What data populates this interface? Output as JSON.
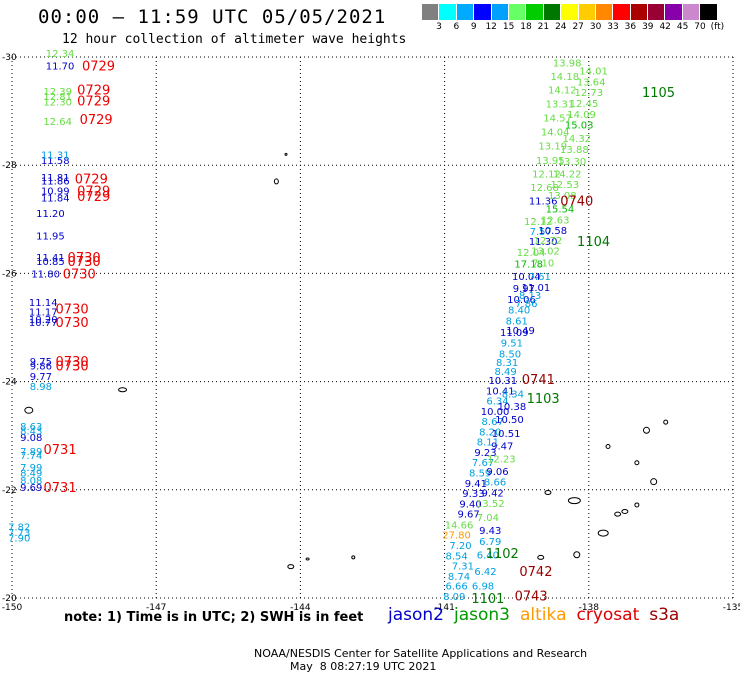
{
  "header": {
    "title": "00:00 – 11:59 UTC 05/05/2021",
    "subtitle": "12 hour collection of altimeter wave heights"
  },
  "legend": {
    "colors": [
      "#808080",
      "#00ffff",
      "#00aaff",
      "#0000ff",
      "#00a0ff",
      "#66ff66",
      "#00cc00",
      "#007700",
      "#ffff00",
      "#ffcc00",
      "#ff8800",
      "#ff0000",
      "#aa0000",
      "#990033",
      "#8800aa",
      "#cc88cc",
      "#000000"
    ],
    "ticks": [
      "3",
      "6",
      "9",
      "12",
      "15",
      "18",
      "21",
      "24",
      "27",
      "30",
      "33",
      "36",
      "39",
      "42",
      "45",
      "70",
      "(ft)"
    ]
  },
  "footer": {
    "note": "note: 1) Time is in UTC; 2) SWH is in feet",
    "credit": "NOAA/NESDIS Center for Satellite Applications and Research",
    "timestamp": "May  8 08:27:19 UTC 2021",
    "satellites": [
      {
        "name": "jason2",
        "color": "#0000cc"
      },
      {
        "name": "jason3",
        "color": "#009900"
      },
      {
        "name": "altika",
        "color": "#ff9900"
      },
      {
        "name": "cryosat",
        "color": "#dd0000"
      },
      {
        "name": "s3a",
        "color": "#990000"
      }
    ]
  },
  "chart_data": {
    "type": "scatter",
    "title": "00:00 – 11:59 UTC 05/05/2021",
    "subtitle": "12 hour collection of altimeter wave heights",
    "xlim": [
      -150,
      -135
    ],
    "ylim": [
      -30,
      -20
    ],
    "x_ticks": [
      "-150",
      "-147",
      "-144",
      "-141",
      "-138",
      "-135"
    ],
    "y_ticks": [
      "-20",
      "-22",
      "-24",
      "-26",
      "-28",
      "-30"
    ],
    "grid": true,
    "colors": {
      "blue": "#0000cc",
      "light": "#00a0e0",
      "green": "#00bb00",
      "lightgreen": "#66dd44",
      "orange": "#ff9900",
      "red": "#ee0000",
      "darkred": "#990000",
      "darkgreen": "#007700"
    },
    "points": [
      {
        "lon": -140.8,
        "lat": -20.04,
        "text": "8.09",
        "c": "light"
      },
      {
        "lon": -140.75,
        "lat": -20.23,
        "text": "6.66",
        "c": "light"
      },
      {
        "lon": -140.7,
        "lat": -20.41,
        "text": "8.74",
        "c": "light"
      },
      {
        "lon": -140.62,
        "lat": -20.6,
        "text": "7.31",
        "c": "light"
      },
      {
        "lon": -140.75,
        "lat": -20.79,
        "text": "8.54",
        "c": "light"
      },
      {
        "lon": -140.67,
        "lat": -20.98,
        "text": "7.20",
        "c": "light"
      },
      {
        "lon": -140.75,
        "lat": -21.17,
        "text": "27.80",
        "c": "orange"
      },
      {
        "lon": -140.7,
        "lat": -21.36,
        "text": "14.66",
        "c": "lightgreen"
      },
      {
        "lon": -140.5,
        "lat": -21.56,
        "text": "9.67",
        "c": "blue"
      },
      {
        "lon": -140.46,
        "lat": -21.75,
        "text": "9.40",
        "c": "blue"
      },
      {
        "lon": -140.4,
        "lat": -21.94,
        "text": "9.33",
        "c": "blue"
      },
      {
        "lon": -140.35,
        "lat": -22.13,
        "text": "9.41",
        "c": "blue"
      },
      {
        "lon": -140.26,
        "lat": -22.32,
        "text": "8.59",
        "c": "light"
      },
      {
        "lon": -140.2,
        "lat": -22.51,
        "text": "7.67",
        "c": "light"
      },
      {
        "lon": -140.15,
        "lat": -22.7,
        "text": "9.23",
        "c": "blue"
      },
      {
        "lon": -140.1,
        "lat": -22.89,
        "text": "8.11",
        "c": "light"
      },
      {
        "lon": -140.05,
        "lat": -23.08,
        "text": "8.20",
        "c": "light"
      },
      {
        "lon": -140.0,
        "lat": -23.27,
        "text": "8.67",
        "c": "light"
      },
      {
        "lon": -139.95,
        "lat": -23.46,
        "text": "10.00",
        "c": "blue"
      },
      {
        "lon": -139.9,
        "lat": -23.65,
        "text": "6.34",
        "c": "light"
      },
      {
        "lon": -139.84,
        "lat": -23.84,
        "text": "10.41",
        "c": "blue"
      },
      {
        "lon": -139.79,
        "lat": -24.03,
        "text": "10.31",
        "c": "blue"
      },
      {
        "lon": -139.73,
        "lat": -24.2,
        "text": "8.49",
        "c": "light"
      },
      {
        "lon": -139.7,
        "lat": -24.36,
        "text": "8.31",
        "c": "light"
      },
      {
        "lon": -139.64,
        "lat": -24.52,
        "text": "8.50",
        "c": "light"
      },
      {
        "lon": -139.6,
        "lat": -24.72,
        "text": "9.51",
        "c": "light"
      },
      {
        "lon": -139.55,
        "lat": -24.92,
        "text": "11.09",
        "c": "blue"
      },
      {
        "lon": -139.5,
        "lat": -25.13,
        "text": "8.61",
        "c": "light"
      },
      {
        "lon": -139.45,
        "lat": -25.33,
        "text": "8.40",
        "c": "light"
      },
      {
        "lon": -139.4,
        "lat": -25.53,
        "text": "10.06",
        "c": "blue"
      },
      {
        "lon": -139.35,
        "lat": -25.73,
        "text": "9.97",
        "c": "blue"
      },
      {
        "lon": -139.3,
        "lat": -25.95,
        "text": "10.04",
        "c": "blue"
      },
      {
        "lon": -139.25,
        "lat": -26.18,
        "text": "17.18",
        "c": "green"
      },
      {
        "lon": -139.2,
        "lat": -26.4,
        "text": "12.04",
        "c": "lightgreen"
      },
      {
        "lon": -138.95,
        "lat": -26.6,
        "text": "11.30",
        "c": "blue"
      },
      {
        "lon": -139.0,
        "lat": -26.78,
        "text": "7.57",
        "c": "light"
      },
      {
        "lon": -139.05,
        "lat": -26.97,
        "text": "12.12",
        "c": "lightgreen"
      },
      {
        "lon": -138.95,
        "lat": -27.35,
        "text": "11.36",
        "c": "blue"
      },
      {
        "lon": -138.92,
        "lat": -27.6,
        "text": "12.68",
        "c": "lightgreen"
      },
      {
        "lon": -138.88,
        "lat": -27.85,
        "text": "12.12",
        "c": "lightgreen"
      },
      {
        "lon": -138.8,
        "lat": -28.1,
        "text": "13.95",
        "c": "lightgreen"
      },
      {
        "lon": -138.75,
        "lat": -28.36,
        "text": "13.19",
        "c": "lightgreen"
      },
      {
        "lon": -138.7,
        "lat": -28.62,
        "text": "14.04",
        "c": "lightgreen"
      },
      {
        "lon": -138.65,
        "lat": -28.88,
        "text": "14.57",
        "c": "lightgreen"
      },
      {
        "lon": -138.6,
        "lat": -29.14,
        "text": "13.31",
        "c": "lightgreen"
      },
      {
        "lon": -138.55,
        "lat": -29.4,
        "text": "14.12",
        "c": "lightgreen"
      },
      {
        "lon": -138.5,
        "lat": -29.65,
        "text": "14.18",
        "c": "lightgreen"
      },
      {
        "lon": -138.45,
        "lat": -29.9,
        "text": "13.98",
        "c": "lightgreen"
      },
      {
        "lon": -140.2,
        "lat": -20.23,
        "text": "6.98",
        "c": "light"
      },
      {
        "lon": -140.15,
        "lat": -20.5,
        "text": "6.42",
        "c": "light"
      },
      {
        "lon": -140.1,
        "lat": -20.8,
        "text": "6.40",
        "c": "light"
      },
      {
        "lon": -140.05,
        "lat": -21.05,
        "text": "6.79",
        "c": "light"
      },
      {
        "lon": -140.05,
        "lat": -21.26,
        "text": "9.43",
        "c": "blue"
      },
      {
        "lon": -140.1,
        "lat": -21.5,
        "text": "7.04",
        "c": "lightgreen"
      },
      {
        "lon": -140.05,
        "lat": -21.76,
        "text": "13.52",
        "c": "lightgreen"
      },
      {
        "lon": -140.0,
        "lat": -21.95,
        "text": "9.42",
        "c": "blue"
      },
      {
        "lon": -139.95,
        "lat": -22.15,
        "text": "8.66",
        "c": "light"
      },
      {
        "lon": -139.9,
        "lat": -22.35,
        "text": "9.06",
        "c": "blue"
      },
      {
        "lon": -139.82,
        "lat": -22.58,
        "text": "12.23",
        "c": "lightgreen"
      },
      {
        "lon": -139.8,
        "lat": -22.82,
        "text": "9.47",
        "c": "blue"
      },
      {
        "lon": -139.72,
        "lat": -23.05,
        "text": "10.51",
        "c": "blue"
      },
      {
        "lon": -139.65,
        "lat": -23.31,
        "text": "10.50",
        "c": "blue"
      },
      {
        "lon": -139.6,
        "lat": -23.55,
        "text": "10.38",
        "c": "blue"
      },
      {
        "lon": -139.58,
        "lat": -23.78,
        "text": "8.34",
        "c": "light"
      },
      {
        "lon": -139.42,
        "lat": -24.95,
        "text": "10.49",
        "c": "blue"
      },
      {
        "lon": -139.3,
        "lat": -25.45,
        "text": "7.86",
        "c": "light"
      },
      {
        "lon": -139.22,
        "lat": -25.6,
        "text": "8.13",
        "c": "light"
      },
      {
        "lon": -139.1,
        "lat": -25.75,
        "text": "11.01",
        "c": "blue"
      },
      {
        "lon": -139.02,
        "lat": -25.95,
        "text": "7.61",
        "c": "light"
      },
      {
        "lon": -138.95,
        "lat": -26.2,
        "text": "7.10",
        "c": "lightgreen"
      },
      {
        "lon": -138.9,
        "lat": -26.42,
        "text": "13.02",
        "c": "lightgreen"
      },
      {
        "lon": -138.85,
        "lat": -26.62,
        "text": "12.72",
        "c": "lightgreen"
      },
      {
        "lon": -138.75,
        "lat": -26.8,
        "text": "10.58",
        "c": "blue"
      },
      {
        "lon": -138.7,
        "lat": -27.0,
        "text": "12.63",
        "c": "lightgreen"
      },
      {
        "lon": -138.6,
        "lat": -27.2,
        "text": "15.54",
        "c": "green"
      },
      {
        "lon": -138.55,
        "lat": -27.45,
        "text": "13.08",
        "c": "lightgreen"
      },
      {
        "lon": -138.5,
        "lat": -27.65,
        "text": "12.53",
        "c": "lightgreen"
      },
      {
        "lon": -138.45,
        "lat": -27.85,
        "text": "14.22",
        "c": "lightgreen"
      },
      {
        "lon": -138.35,
        "lat": -28.08,
        "text": "13.30",
        "c": "lightgreen"
      },
      {
        "lon": -138.3,
        "lat": -28.3,
        "text": "13.88",
        "c": "lightgreen"
      },
      {
        "lon": -138.25,
        "lat": -28.5,
        "text": "14.32",
        "c": "lightgreen"
      },
      {
        "lon": -138.2,
        "lat": -28.75,
        "text": "15.03",
        "c": "green"
      },
      {
        "lon": -138.15,
        "lat": -28.95,
        "text": "14.09",
        "c": "lightgreen"
      },
      {
        "lon": -138.1,
        "lat": -29.15,
        "text": "12.45",
        "c": "lightgreen"
      },
      {
        "lon": -138.0,
        "lat": -29.35,
        "text": "12.73",
        "c": "lightgreen"
      },
      {
        "lon": -137.95,
        "lat": -29.55,
        "text": "13.64",
        "c": "lightgreen"
      },
      {
        "lon": -137.9,
        "lat": -29.75,
        "text": "14.01",
        "c": "lightgreen"
      },
      {
        "lon": -149.85,
        "lat": -21.12,
        "text": "7.90",
        "c": "light"
      },
      {
        "lon": -149.85,
        "lat": -21.22,
        "text": "7.73",
        "c": "light"
      },
      {
        "lon": -149.85,
        "lat": -21.32,
        "text": "7.82",
        "c": "light"
      },
      {
        "lon": -149.6,
        "lat": -22.05,
        "text": "9.69",
        "c": "blue"
      },
      {
        "lon": -149.6,
        "lat": -22.18,
        "text": "8.08",
        "c": "light"
      },
      {
        "lon": -149.6,
        "lat": -22.32,
        "text": "8.49",
        "c": "light"
      },
      {
        "lon": -149.6,
        "lat": -22.42,
        "text": "7.99",
        "c": "light"
      },
      {
        "lon": -149.6,
        "lat": -22.64,
        "text": "7.74",
        "c": "light"
      },
      {
        "lon": -149.6,
        "lat": -22.72,
        "text": "7.89",
        "c": "light"
      },
      {
        "lon": -149.6,
        "lat": -22.98,
        "text": "9.08",
        "c": "blue"
      },
      {
        "lon": -149.6,
        "lat": -23.1,
        "text": "8.43",
        "c": "light"
      },
      {
        "lon": -149.6,
        "lat": -23.18,
        "text": "8.63",
        "c": "light"
      },
      {
        "lon": -149.4,
        "lat": -23.92,
        "text": "8.98",
        "c": "light"
      },
      {
        "lon": -149.4,
        "lat": -24.1,
        "text": "9.77",
        "c": "blue"
      },
      {
        "lon": -149.4,
        "lat": -24.3,
        "text": "9.86",
        "c": "blue"
      },
      {
        "lon": -149.4,
        "lat": -24.38,
        "text": "9.75",
        "c": "blue"
      },
      {
        "lon": -149.35,
        "lat": -25.1,
        "text": "10.77",
        "c": "blue"
      },
      {
        "lon": -149.35,
        "lat": -25.16,
        "text": "10.20",
        "c": "blue"
      },
      {
        "lon": -149.35,
        "lat": -25.3,
        "text": "11.17",
        "c": "blue"
      },
      {
        "lon": -149.35,
        "lat": -25.47,
        "text": "11.14",
        "c": "blue"
      },
      {
        "lon": -149.3,
        "lat": -26.0,
        "text": "11.80",
        "c": "blue"
      },
      {
        "lon": -149.2,
        "lat": -26.23,
        "text": "10.85",
        "c": "blue"
      },
      {
        "lon": -149.2,
        "lat": -26.3,
        "text": "11.41",
        "c": "blue"
      },
      {
        "lon": -149.2,
        "lat": -26.7,
        "text": "11.95",
        "c": "blue"
      },
      {
        "lon": -149.2,
        "lat": -27.12,
        "text": "11.20",
        "c": "blue"
      },
      {
        "lon": -149.1,
        "lat": -27.4,
        "text": "11.84",
        "c": "blue"
      },
      {
        "lon": -149.1,
        "lat": -27.53,
        "text": "10.99",
        "c": "blue"
      },
      {
        "lon": -149.1,
        "lat": -27.72,
        "text": "11.86",
        "c": "blue"
      },
      {
        "lon": -149.1,
        "lat": -27.78,
        "text": "11.81",
        "c": "blue"
      },
      {
        "lon": -149.1,
        "lat": -28.1,
        "text": "11.58",
        "c": "blue"
      },
      {
        "lon": -149.1,
        "lat": -28.2,
        "text": "11.31",
        "c": "light"
      },
      {
        "lon": -149.05,
        "lat": -28.82,
        "text": "12.64",
        "c": "lightgreen"
      },
      {
        "lon": -149.05,
        "lat": -29.18,
        "text": "12.30",
        "c": "lightgreen"
      },
      {
        "lon": -149.05,
        "lat": -29.28,
        "text": "12.81",
        "c": "lightgreen"
      },
      {
        "lon": -149.05,
        "lat": -29.37,
        "text": "12.39",
        "c": "lightgreen"
      },
      {
        "lon": -149.0,
        "lat": -29.84,
        "text": "11.70",
        "c": "blue"
      },
      {
        "lon": -149.0,
        "lat": -30.07,
        "text": "12.34",
        "c": "lightgreen"
      }
    ],
    "time_labels": [
      {
        "lon": -140.1,
        "lat": -20.0,
        "text": "1101",
        "c": "darkgreen"
      },
      {
        "lon": -139.2,
        "lat": -20.05,
        "text": "0743",
        "c": "darkred"
      },
      {
        "lon": -139.1,
        "lat": -20.5,
        "text": "0742",
        "c": "darkred"
      },
      {
        "lon": -139.8,
        "lat": -20.83,
        "text": "1102",
        "c": "darkgreen"
      },
      {
        "lon": -149.0,
        "lat": -22.05,
        "text": "0731",
        "c": "red"
      },
      {
        "lon": -149.0,
        "lat": -22.75,
        "text": "0731",
        "c": "red"
      },
      {
        "lon": -138.95,
        "lat": -23.7,
        "text": "1103",
        "c": "darkgreen"
      },
      {
        "lon": -139.05,
        "lat": -24.05,
        "text": "0741",
        "c": "darkred"
      },
      {
        "lon": -148.75,
        "lat": -24.3,
        "text": "0730",
        "c": "red"
      },
      {
        "lon": -148.75,
        "lat": -24.38,
        "text": "0730",
        "c": "red"
      },
      {
        "lon": -148.75,
        "lat": -25.1,
        "text": "0730",
        "c": "red"
      },
      {
        "lon": -148.75,
        "lat": -25.35,
        "text": "0730",
        "c": "red"
      },
      {
        "lon": -148.6,
        "lat": -26.0,
        "text": "0730",
        "c": "red"
      },
      {
        "lon": -148.5,
        "lat": -26.23,
        "text": "0730",
        "c": "red"
      },
      {
        "lon": -148.5,
        "lat": -26.3,
        "text": "0730",
        "c": "red"
      },
      {
        "lon": -137.9,
        "lat": -26.6,
        "text": "1104",
        "c": "darkgreen"
      },
      {
        "lon": -148.3,
        "lat": -27.43,
        "text": "0729",
        "c": "red"
      },
      {
        "lon": -148.3,
        "lat": -27.53,
        "text": "0729",
        "c": "red"
      },
      {
        "lon": -148.35,
        "lat": -27.75,
        "text": "0729",
        "c": "red"
      },
      {
        "lon": -138.25,
        "lat": -27.35,
        "text": "0740",
        "c": "darkred"
      },
      {
        "lon": -148.25,
        "lat": -28.85,
        "text": "0729",
        "c": "red"
      },
      {
        "lon": -148.3,
        "lat": -29.2,
        "text": "0729",
        "c": "red"
      },
      {
        "lon": -148.3,
        "lat": -29.4,
        "text": "0729",
        "c": "red"
      },
      {
        "lon": -136.55,
        "lat": -29.35,
        "text": "1105",
        "c": "darkgreen"
      },
      {
        "lon": -148.2,
        "lat": -29.84,
        "text": "0729",
        "c": "red"
      }
    ]
  }
}
